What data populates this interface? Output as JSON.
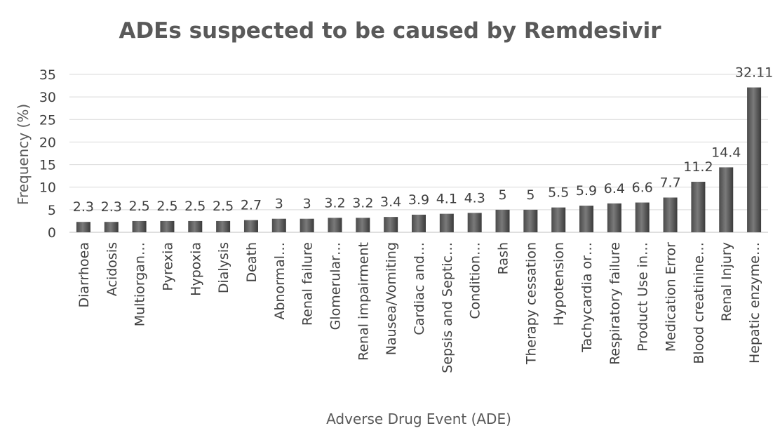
{
  "chart_data": {
    "type": "bar",
    "title": "ADEs suspected to be caused by Remdesivir",
    "xlabel": "Adverse Drug Event (ADE)",
    "ylabel": "Frequency (%)",
    "ylim": [
      0,
      35
    ],
    "yticks": [
      "0",
      "5",
      "10",
      "15",
      "20",
      "25",
      "30",
      "35"
    ],
    "grid": true,
    "legend": "none",
    "bar_color": "#595959",
    "categories": [
      "Diarrhoea",
      "Acidosis",
      "Multiorgan…",
      "Pyrexia",
      "Hypoxia",
      "Dialysis",
      "Death",
      "Abnormal…",
      "Renal failure",
      "Glomerular…",
      "Renal impairment",
      "Nausea/Vomiting",
      "Cardiac and…",
      "Sepsis and Septic…",
      "Condition…",
      "Rash",
      "Therapy cessation",
      "Hypotension",
      "Tachycardia or…",
      "Respiratory failure",
      "Product Use in…",
      "Medication Error",
      "Blood creatinine…",
      "Renal Injury",
      "Hepatic enzyme…"
    ],
    "values": [
      2.3,
      2.3,
      2.5,
      2.5,
      2.5,
      2.5,
      2.7,
      3,
      3,
      3.2,
      3.2,
      3.4,
      3.9,
      4.1,
      4.3,
      5,
      5,
      5.5,
      5.9,
      6.4,
      6.6,
      7.7,
      11.2,
      14.4,
      32.11
    ],
    "data_labels": [
      "2.3",
      "2.3",
      "2.5",
      "2.5",
      "2.5",
      "2.5",
      "2.7",
      "3",
      "3",
      "3.2",
      "3.2",
      "3.4",
      "3.9",
      "4.1",
      "4.3",
      "5",
      "5",
      "5.5",
      "5.9",
      "6.4",
      "6.6",
      "7.7",
      "11.2",
      "14.4",
      "32.11"
    ]
  }
}
